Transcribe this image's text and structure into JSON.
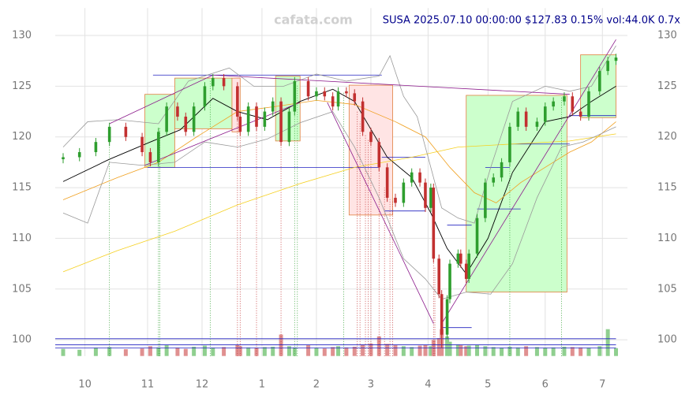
{
  "chart_data": {
    "type": "candlestick",
    "title": "SUSA 2025.07.10 00:00:00 $127.83 0.15% vol:44.0K 0.7x",
    "watermark": "cafata.com",
    "xlim": [
      -2.9,
      207.2
    ],
    "ylim": [
      98.4,
      132.7
    ],
    "yticks": [
      100,
      105,
      110,
      115,
      120,
      125,
      130
    ],
    "xticks": [
      {
        "value": 8,
        "label": "10"
      },
      {
        "value": 31,
        "label": "11"
      },
      {
        "value": 51,
        "label": "12"
      },
      {
        "value": 73,
        "label": "1"
      },
      {
        "value": 93,
        "label": "2"
      },
      {
        "value": 113,
        "label": "3"
      },
      {
        "value": 134,
        "label": "4"
      },
      {
        "value": 156,
        "label": "5"
      },
      {
        "value": 177,
        "label": "6"
      },
      {
        "value": 198,
        "label": "7"
      }
    ],
    "grid": true,
    "up_color": "#2e9e2e",
    "down_color": "#c23030",
    "x": [
      0,
      6,
      12,
      17,
      23,
      29,
      32,
      35,
      38,
      42,
      45,
      48,
      52,
      55,
      59,
      64,
      65,
      68,
      71,
      74,
      77,
      80,
      83,
      85,
      90,
      93,
      96,
      99,
      101,
      104,
      107,
      110,
      113,
      116,
      119,
      122,
      125,
      128,
      131,
      133,
      135,
      136,
      138,
      139,
      141,
      142,
      145,
      146,
      148,
      149,
      152,
      155,
      158,
      161,
      164,
      167,
      170,
      174,
      177,
      180,
      184,
      187,
      190,
      193,
      197,
      200,
      203
    ],
    "open": [
      117.8,
      118.0,
      118.5,
      119.5,
      121.0,
      120.0,
      118.5,
      117.5,
      120.5,
      123.0,
      122.0,
      120.5,
      123.0,
      125.0,
      125.8,
      125.0,
      122.0,
      120.5,
      123.0,
      121.0,
      122.5,
      123.5,
      119.5,
      122.5,
      125.5,
      124.0,
      124.5,
      124.0,
      123.0,
      124.5,
      124.3,
      123.5,
      120.5,
      119.5,
      117.0,
      114.0,
      113.5,
      115.5,
      116.5,
      115.5,
      113.0,
      115.0,
      108.0,
      104.5,
      100.5,
      104.0,
      107.5,
      108.5,
      107.5,
      106.0,
      108.5,
      112.0,
      115.5,
      116.0,
      117.5,
      121.0,
      122.5,
      121.0,
      121.5,
      123.0,
      123.5,
      124.0,
      122.5,
      122.0,
      124.5,
      126.5,
      127.5
    ],
    "high": [
      118.4,
      118.9,
      119.9,
      121.4,
      121.4,
      120.4,
      118.9,
      120.9,
      123.4,
      123.4,
      122.4,
      123.4,
      125.4,
      126.2,
      126.2,
      125.4,
      122.4,
      123.4,
      123.4,
      122.9,
      123.9,
      123.9,
      122.9,
      125.9,
      125.9,
      124.9,
      124.9,
      124.4,
      124.9,
      124.9,
      124.7,
      123.9,
      120.9,
      119.9,
      117.4,
      114.4,
      115.9,
      116.9,
      116.9,
      115.9,
      115.4,
      115.4,
      108.4,
      104.9,
      104.4,
      107.9,
      108.9,
      108.9,
      107.9,
      108.9,
      112.4,
      115.9,
      116.4,
      117.9,
      121.4,
      122.9,
      122.9,
      121.9,
      123.4,
      123.9,
      124.4,
      124.4,
      122.9,
      124.9,
      126.9,
      127.9,
      128.2
    ],
    "low": [
      117.4,
      117.6,
      118.1,
      119.1,
      119.6,
      118.1,
      117.1,
      117.1,
      120.1,
      121.6,
      120.1,
      120.1,
      122.6,
      124.6,
      124.6,
      121.6,
      120.1,
      120.1,
      120.6,
      120.6,
      122.1,
      119.1,
      119.1,
      122.1,
      123.6,
      123.6,
      123.6,
      122.6,
      122.6,
      123.9,
      123.1,
      120.1,
      119.1,
      116.6,
      113.6,
      113.1,
      113.1,
      115.1,
      115.1,
      112.6,
      112.6,
      107.6,
      104.1,
      99.2,
      100.1,
      103.6,
      107.1,
      107.1,
      105.6,
      105.6,
      108.1,
      111.6,
      115.1,
      115.6,
      117.1,
      120.6,
      120.6,
      120.6,
      121.1,
      122.6,
      123.1,
      122.1,
      121.6,
      121.6,
      124.1,
      126.1,
      127.1
    ],
    "close": [
      118.0,
      118.5,
      119.5,
      121.0,
      120.0,
      118.5,
      117.5,
      120.5,
      123.0,
      122.0,
      120.5,
      123.0,
      125.0,
      125.8,
      125.0,
      122.0,
      120.5,
      123.0,
      121.0,
      122.5,
      123.5,
      119.5,
      122.5,
      125.5,
      124.0,
      124.5,
      124.0,
      123.0,
      124.5,
      124.3,
      123.5,
      120.5,
      119.5,
      117.0,
      114.0,
      113.5,
      115.5,
      116.5,
      115.5,
      113.0,
      115.0,
      108.0,
      104.5,
      100.5,
      104.0,
      107.5,
      108.5,
      107.5,
      106.0,
      108.5,
      112.0,
      115.5,
      116.0,
      117.5,
      121.0,
      122.5,
      121.0,
      121.5,
      123.0,
      123.5,
      124.0,
      122.5,
      122.0,
      124.5,
      126.5,
      127.5,
      127.83
    ],
    "volume": [
      40,
      35,
      45,
      50,
      38,
      42,
      55,
      48,
      60,
      45,
      40,
      52,
      58,
      47,
      50,
      62,
      55,
      48,
      45,
      50,
      52,
      120,
      55,
      48,
      60,
      45,
      42,
      50,
      55,
      48,
      52,
      65,
      70,
      110,
      68,
      60,
      55,
      50,
      58,
      62,
      55,
      90,
      100,
      150,
      110,
      80,
      65,
      60,
      55,
      58,
      62,
      55,
      50,
      45,
      52,
      48,
      55,
      50,
      45,
      48,
      52,
      50,
      48,
      45,
      55,
      150,
      44
    ],
    "zones": [
      {
        "x0": 30,
        "x1": 41,
        "y0": 117.0,
        "y1": 124.2,
        "color": "#ccffcc",
        "edge": "#e08040"
      },
      {
        "x0": 41,
        "x1": 62,
        "y0": 120.8,
        "y1": 125.8,
        "color": "#ccffcc",
        "edge": "#e08040"
      },
      {
        "x0": 62,
        "x1": 65,
        "y0": 120.5,
        "y1": 125.8,
        "color": "#ffe4e4",
        "edge": "#e08040"
      },
      {
        "x0": 78,
        "x1": 87,
        "y0": 119.6,
        "y1": 126.0,
        "color": "#ccffcc",
        "edge": "#e08040"
      },
      {
        "x0": 105,
        "x1": 121,
        "y0": 112.3,
        "y1": 125.1,
        "color": "#ffe4e4",
        "edge": "#e08040"
      },
      {
        "x0": 148,
        "x1": 185,
        "y0": 104.7,
        "y1": 124.1,
        "color": "#ccffcc",
        "edge": "#e08040"
      },
      {
        "x0": 190,
        "x1": 203,
        "y0": 121.9,
        "y1": 128.1,
        "color": "#ccffcc",
        "edge": "#e08040"
      }
    ],
    "indicators": [
      {
        "color": "#000000",
        "x": [
          0,
          17,
          32,
          43,
          55,
          64,
          75,
          87,
          99,
          107,
          119,
          128,
          135,
          141,
          148,
          156,
          165,
          177,
          186,
          194,
          203
        ],
        "values": [
          115.6,
          117.8,
          119.5,
          120.7,
          123.8,
          122.5,
          121.7,
          123.5,
          124.7,
          123.5,
          118.0,
          116.0,
          112.5,
          109.0,
          106.5,
          110.0,
          116.5,
          121.5,
          122.0,
          123.5,
          125.0
        ]
      },
      {
        "color": "#f0a020",
        "x": [
          0,
          20,
          35,
          49,
          64,
          78,
          93,
          107,
          122,
          133,
          142,
          151,
          159,
          168,
          177,
          186,
          194,
          203
        ],
        "values": [
          113.8,
          116.0,
          117.5,
          120.0,
          122.5,
          123.0,
          123.6,
          123.2,
          121.5,
          120.0,
          117.0,
          114.5,
          113.5,
          115.5,
          117.0,
          118.5,
          119.5,
          121.5
        ]
      },
      {
        "color": "#f5d020",
        "x": [
          0,
          20,
          41,
          64,
          87,
          107,
          128,
          145,
          165,
          186,
          203
        ],
        "values": [
          106.7,
          108.8,
          110.7,
          113.3,
          115.4,
          117.0,
          118.0,
          119.0,
          119.3,
          119.6,
          120.3
        ]
      },
      {
        "color": "#999999",
        "x": [
          0,
          9,
          20,
          35,
          46,
          61,
          70,
          81,
          93,
          104,
          116,
          120,
          125,
          130,
          139,
          145,
          151,
          157,
          165,
          177,
          186,
          194,
          203
        ],
        "values": [
          119.0,
          121.5,
          121.7,
          121.3,
          125.5,
          126.8,
          125.0,
          125.0,
          126.2,
          125.5,
          126.0,
          128.0,
          124.0,
          122.0,
          113.0,
          112.0,
          111.5,
          117.0,
          123.5,
          125.0,
          124.5,
          125.0,
          129.0
        ]
      },
      {
        "color": "#999999",
        "x": [
          0,
          9,
          17,
          29,
          41,
          52,
          64,
          75,
          87,
          99,
          107,
          116,
          125,
          133,
          139,
          148,
          157,
          165,
          174,
          183,
          191,
          203
        ],
        "values": [
          112.5,
          111.5,
          117.5,
          117.2,
          117.5,
          119.5,
          119.0,
          119.8,
          121.4,
          122.5,
          119.0,
          114.0,
          108.0,
          106.0,
          104.0,
          104.7,
          104.5,
          107.5,
          114.0,
          119.0,
          119.5,
          121.0
        ]
      }
    ],
    "trendlines": [
      {
        "color": "#8b1a8b",
        "x0": 17,
        "x1": 55,
        "y0": 121.3,
        "y1": 126.1
      },
      {
        "color": "#8b1a8b",
        "x0": 55,
        "x1": 186,
        "y0": 126.1,
        "y1": 124.2
      },
      {
        "color": "#8b1a8b",
        "x0": 30,
        "x1": 87,
        "y0": 117.2,
        "y1": 123.4
      },
      {
        "color": "#8b1a8b",
        "x0": 97,
        "x1": 136,
        "y0": 123.4,
        "y1": 101.6
      },
      {
        "color": "#8b1a8b",
        "x0": 139,
        "x1": 203,
        "y0": 101.6,
        "y1": 129.6
      }
    ],
    "levels": [
      {
        "color": "#2020c0",
        "x0": 33,
        "x1": 117,
        "y": 126.1
      },
      {
        "color": "#2020c0",
        "x0": 31,
        "x1": 116,
        "y": 117.0
      },
      {
        "color": "#2020c0",
        "x0": 117,
        "x1": 133,
        "y": 118.0
      },
      {
        "color": "#2020c0",
        "x0": 118,
        "x1": 133,
        "y": 112.7
      },
      {
        "color": "#2020c0",
        "x0": 141,
        "x1": 150,
        "y": 111.3
      },
      {
        "color": "#2020c0",
        "x0": 139,
        "x1": 150,
        "y": 101.2
      },
      {
        "color": "#2020c0",
        "x0": 152,
        "x1": 168,
        "y": 112.9
      },
      {
        "color": "#2020c0",
        "x0": 155,
        "x1": 164,
        "y": 117.0
      },
      {
        "color": "#2020c0",
        "x0": 164,
        "x1": 186,
        "y": 119.3
      },
      {
        "color": "#2020c0",
        "x0": 186,
        "x1": 203,
        "y": 122.1
      },
      {
        "color": "#2020c0",
        "x0": -2.9,
        "x1": 203,
        "y": 100.1
      },
      {
        "color": "#2020c0",
        "x0": -2.9,
        "x1": 203,
        "y": 99.5
      },
      {
        "color": "#2020c0",
        "x0": -2.9,
        "x1": 203,
        "y": 99.2
      }
    ],
    "signals": [
      {
        "color": "#2e9e2e",
        "x": [
          17,
          35,
          35.5,
          54,
          85,
          86,
          103,
          164,
          183
        ]
      },
      {
        "color": "#c23030",
        "x": [
          64,
          65,
          71,
          80,
          108,
          109,
          111,
          112,
          113,
          116,
          118,
          120,
          121,
          136,
          136.5
        ]
      }
    ]
  }
}
